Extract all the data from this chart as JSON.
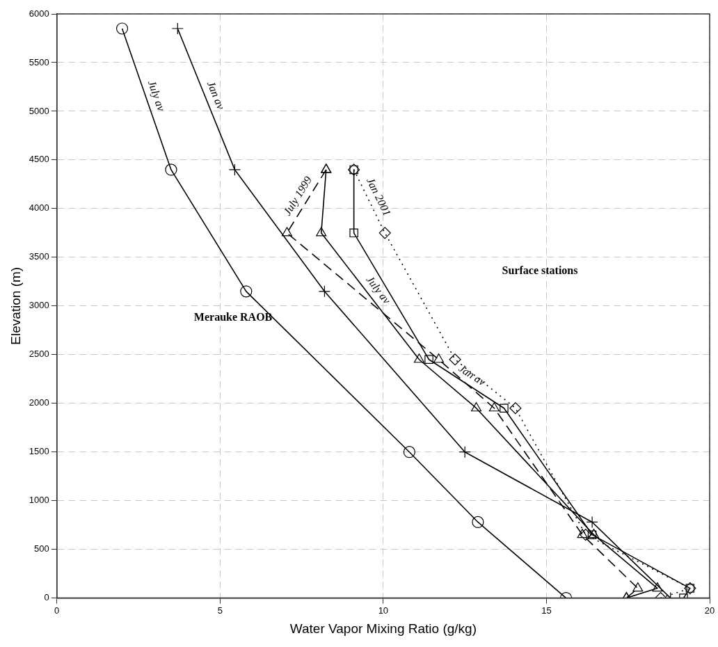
{
  "chart_data": {
    "type": "line",
    "xlabel": "Water Vapor Mixing Ratio (g/kg)",
    "ylabel": "Elevation (m)",
    "xlim": [
      0,
      20
    ],
    "xticks": [
      0,
      5,
      10,
      15,
      20
    ],
    "ylim": [
      0,
      6000
    ],
    "yticks": [
      0,
      500,
      1000,
      1500,
      2000,
      2500,
      3000,
      3500,
      4000,
      4500,
      5000,
      5500,
      6000
    ],
    "grid": true,
    "legend": false,
    "series": [
      {
        "name": "July av",
        "color": "#000000",
        "marker": "circle",
        "line_style": "solid",
        "x": [
          2.0,
          3.5,
          5.8,
          10.8,
          12.9,
          15.6
        ],
        "values": [
          5850,
          4400,
          3150,
          1500,
          780,
          0
        ]
      },
      {
        "name": "Jan av",
        "color": "#000000",
        "marker": "cross",
        "line_style": "solid",
        "x": [
          3.7,
          5.45,
          8.2,
          12.5,
          16.4,
          18.8
        ],
        "values": [
          5850,
          4400,
          3150,
          1500,
          780,
          0
        ]
      },
      {
        "name": "July 1999",
        "color": "#000000",
        "marker": "triangle",
        "line_style": "dashed",
        "x": [
          8.25,
          7.05,
          11.7,
          13.4,
          16.1,
          17.8,
          17.45
        ],
        "values": [
          4400,
          3750,
          2450,
          1950,
          650,
          100,
          0
        ]
      },
      {
        "name": "July av",
        "color": "#000000",
        "marker": "triangle",
        "line_style": "solid",
        "x": [
          8.25,
          8.1,
          11.1,
          12.85,
          16.45,
          18.4,
          17.45
        ],
        "values": [
          4400,
          3750,
          2450,
          1950,
          650,
          100,
          0
        ]
      },
      {
        "name": "Jan 2001",
        "color": "#000000",
        "marker": "diamond",
        "line_style": "dotted",
        "x": [
          9.1,
          10.05,
          12.2,
          14.05,
          16.2,
          19.4,
          18.5
        ],
        "values": [
          4400,
          3750,
          2450,
          1950,
          650,
          100,
          0
        ]
      },
      {
        "name": "Jan av",
        "color": "#000000",
        "marker": "square",
        "line_style": "solid",
        "x": [
          9.1,
          9.1,
          11.4,
          13.7,
          16.4,
          19.4,
          19.2
        ],
        "values": [
          4400,
          3750,
          2450,
          1950,
          650,
          100,
          0
        ]
      }
    ],
    "annotations": [
      "Surface stations",
      "Merauke RAOB"
    ]
  }
}
